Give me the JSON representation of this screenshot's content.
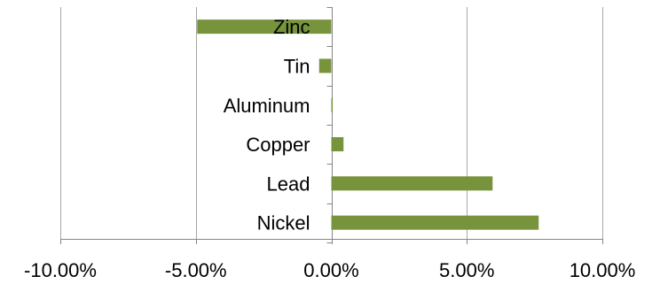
{
  "chart_data": {
    "type": "bar",
    "orientation": "horizontal",
    "categories": [
      "Zinc",
      "Tin",
      "Aluminum",
      "Copper",
      "Lead",
      "Nickel"
    ],
    "values": [
      -0.0495,
      -0.0045,
      0.0005,
      0.0045,
      0.0595,
      0.0765
    ],
    "xlim": [
      -0.1,
      0.1
    ],
    "x_ticks": [
      -0.1,
      -0.05,
      0,
      0.05,
      0.1
    ],
    "x_tick_labels": [
      "-10.00%",
      "-5.00%",
      "0.00%",
      "5.00%",
      "10.00%"
    ],
    "title": "",
    "xlabel": "",
    "ylabel": "",
    "grid": "vertical major gridlines",
    "legend": "none",
    "bar_color": "#77933c"
  }
}
